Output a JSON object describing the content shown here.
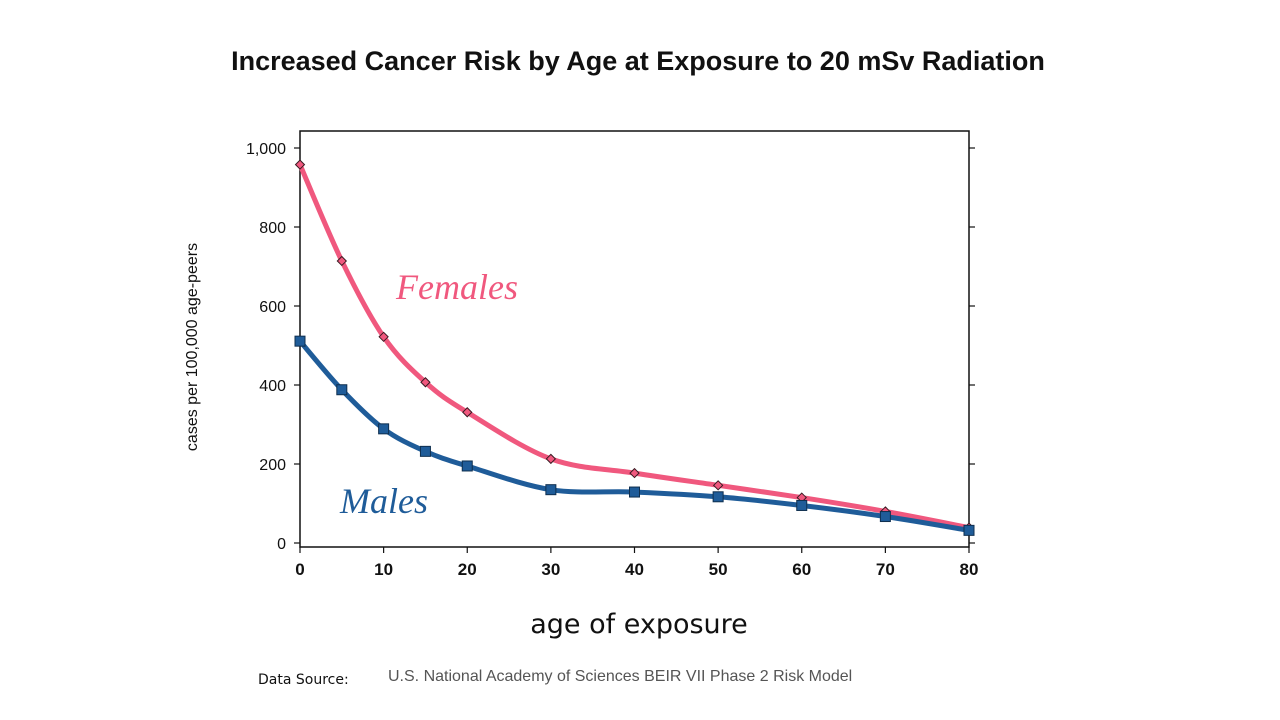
{
  "chart_data": {
    "type": "line",
    "title": "Increased Cancer Risk by Age at Exposure to  20 mSv  Radiation",
    "xlabel": "age of exposure",
    "ylabel": "cases per 100,000 age-peers",
    "xlim": [
      0,
      80
    ],
    "ylim": [
      0,
      1000
    ],
    "x_ticks": [
      "0",
      "10",
      "20",
      "30",
      "40",
      "50",
      "60",
      "70",
      "80"
    ],
    "y_ticks": [
      "0",
      "200",
      "400",
      "600",
      "800",
      "1,000"
    ],
    "x": [
      0,
      5,
      10,
      15,
      20,
      30,
      40,
      50,
      60,
      70,
      80
    ],
    "series": [
      {
        "name": "Females",
        "color": "#f0587e",
        "marker": "diamond",
        "values": [
          958,
          714,
          522,
          407,
          331,
          213,
          177,
          146,
          115,
          80,
          39
        ]
      },
      {
        "name": "Males",
        "color": "#1f5c99",
        "marker": "square",
        "values": [
          511,
          388,
          289,
          232,
          195,
          135,
          129,
          117,
          95,
          67,
          32
        ]
      }
    ],
    "source_label": "Data Source:",
    "source_text": "U.S. National Academy of Sciences BEIR VII Phase 2 Risk Model"
  }
}
